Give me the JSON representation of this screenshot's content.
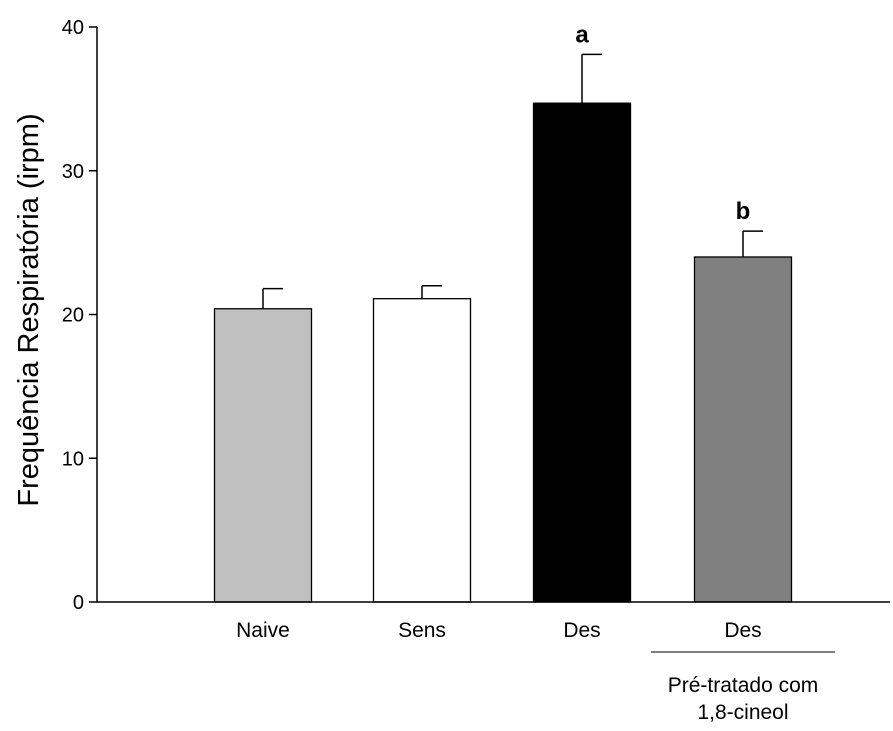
{
  "chart_data": {
    "type": "bar",
    "title": "",
    "xlabel": "",
    "ylabel": "Frequência Respiratória (irpm)",
    "ylim": [
      0,
      40
    ],
    "yticks": [
      0,
      10,
      20,
      30,
      40
    ],
    "grid": false,
    "categories": [
      "Naive",
      "Sens",
      "Des",
      "Des"
    ],
    "values": [
      20.4,
      21.1,
      34.7,
      24.0
    ],
    "errors": [
      1.4,
      0.9,
      3.4,
      1.8
    ],
    "bar_colors": [
      "#c0c0c0",
      "#ffffff",
      "#000000",
      "#808080"
    ],
    "significance_labels": [
      "",
      "",
      "a",
      "b"
    ],
    "group_annotation": {
      "category_index": 3,
      "lines": [
        "Pré-tratado com",
        "1,8-cineol"
      ]
    }
  }
}
